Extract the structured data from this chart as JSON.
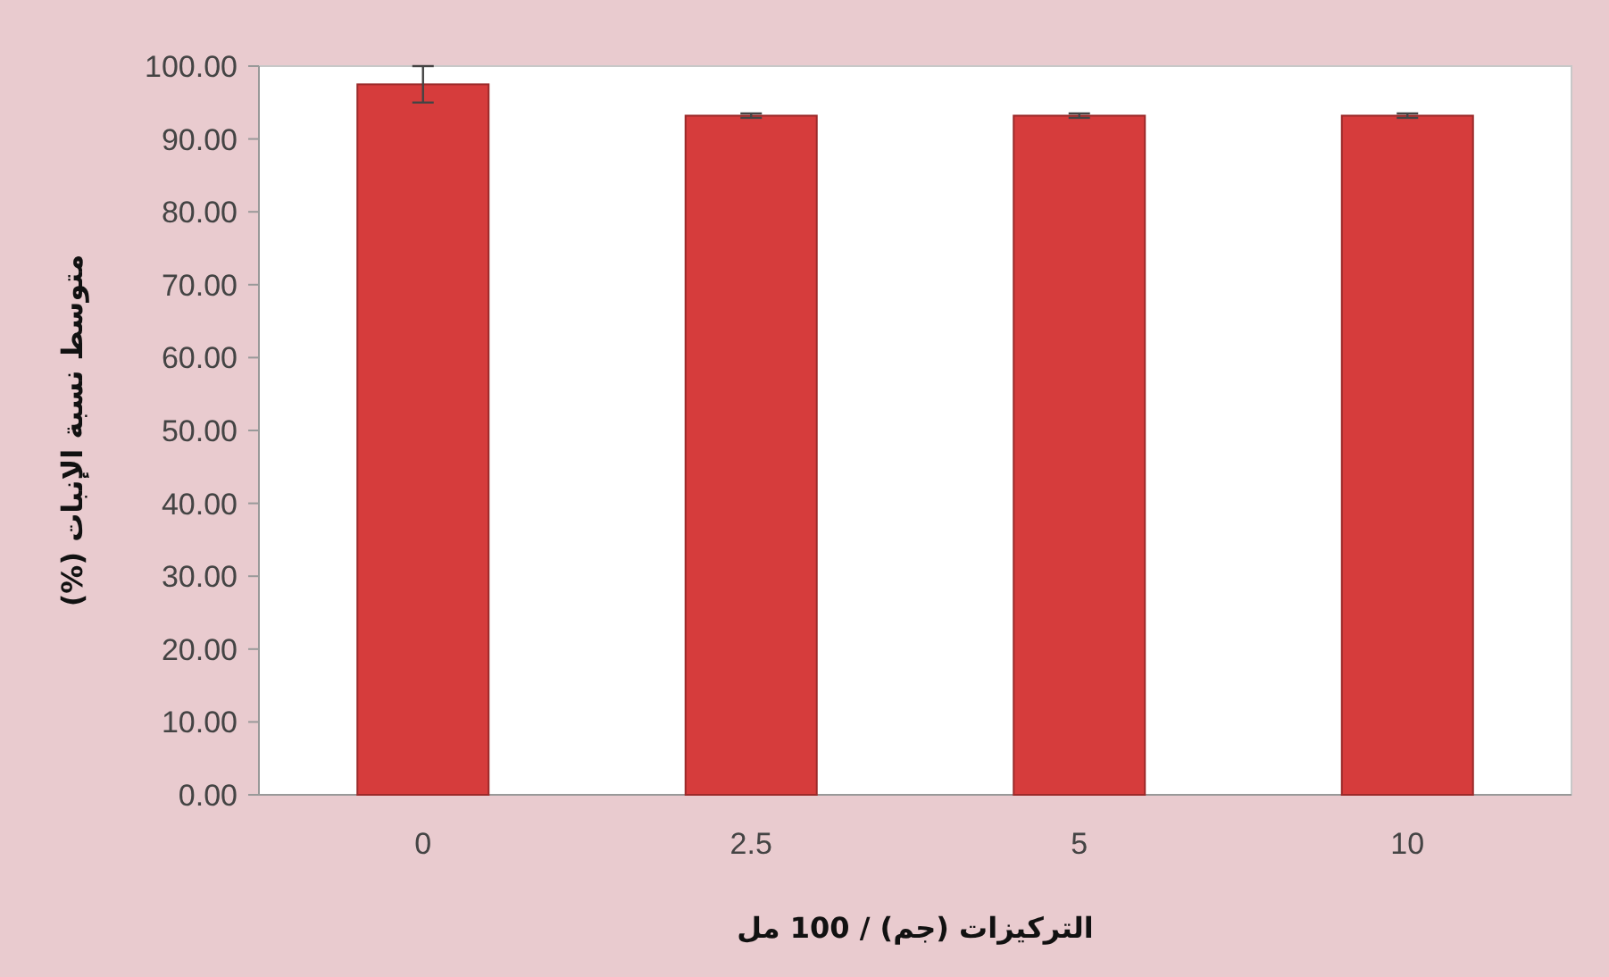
{
  "chart_data": {
    "type": "bar",
    "xlabel": "التركيزات (جم) / 100 مل",
    "ylabel": "متوسط نسبة الإنبات (%)",
    "categories": [
      "0",
      "2.5",
      "5",
      "10"
    ],
    "values": [
      97.5,
      93.2,
      93.2,
      93.2
    ],
    "errors": [
      2.5,
      0.3,
      0.3,
      0.3
    ],
    "color": "#d63c3c",
    "ylim": [
      0,
      100
    ],
    "yticks": [
      {
        "value": 0,
        "label": "0.00"
      },
      {
        "value": 10,
        "label": "10.00"
      },
      {
        "value": 20,
        "label": "20.00"
      },
      {
        "value": 30,
        "label": "30.00"
      },
      {
        "value": 40,
        "label": "40.00"
      },
      {
        "value": 50,
        "label": "50.00"
      },
      {
        "value": 60,
        "label": "60.00"
      },
      {
        "value": 70,
        "label": "70.00"
      },
      {
        "value": 80,
        "label": "80.00"
      },
      {
        "value": 90,
        "label": "90.00"
      },
      {
        "value": 100,
        "label": "100.00"
      }
    ],
    "grid": false
  }
}
